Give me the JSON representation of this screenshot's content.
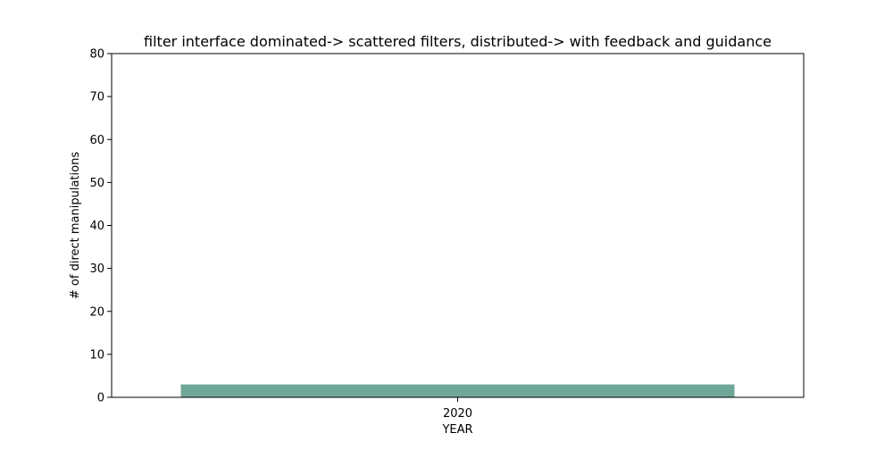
{
  "chart_data": {
    "type": "bar",
    "title": "filter interface dominated-> scattered filters, distributed-> with feedback and guidance",
    "xlabel": "YEAR",
    "ylabel": "# of direct manipulations",
    "categories": [
      "2020"
    ],
    "values": [
      3
    ],
    "ylim": [
      0,
      80
    ],
    "yticks": [
      0,
      10,
      20,
      30,
      40,
      50,
      60,
      70,
      80
    ],
    "bar_color": "#6fa898",
    "grid": false,
    "legend": "none"
  }
}
